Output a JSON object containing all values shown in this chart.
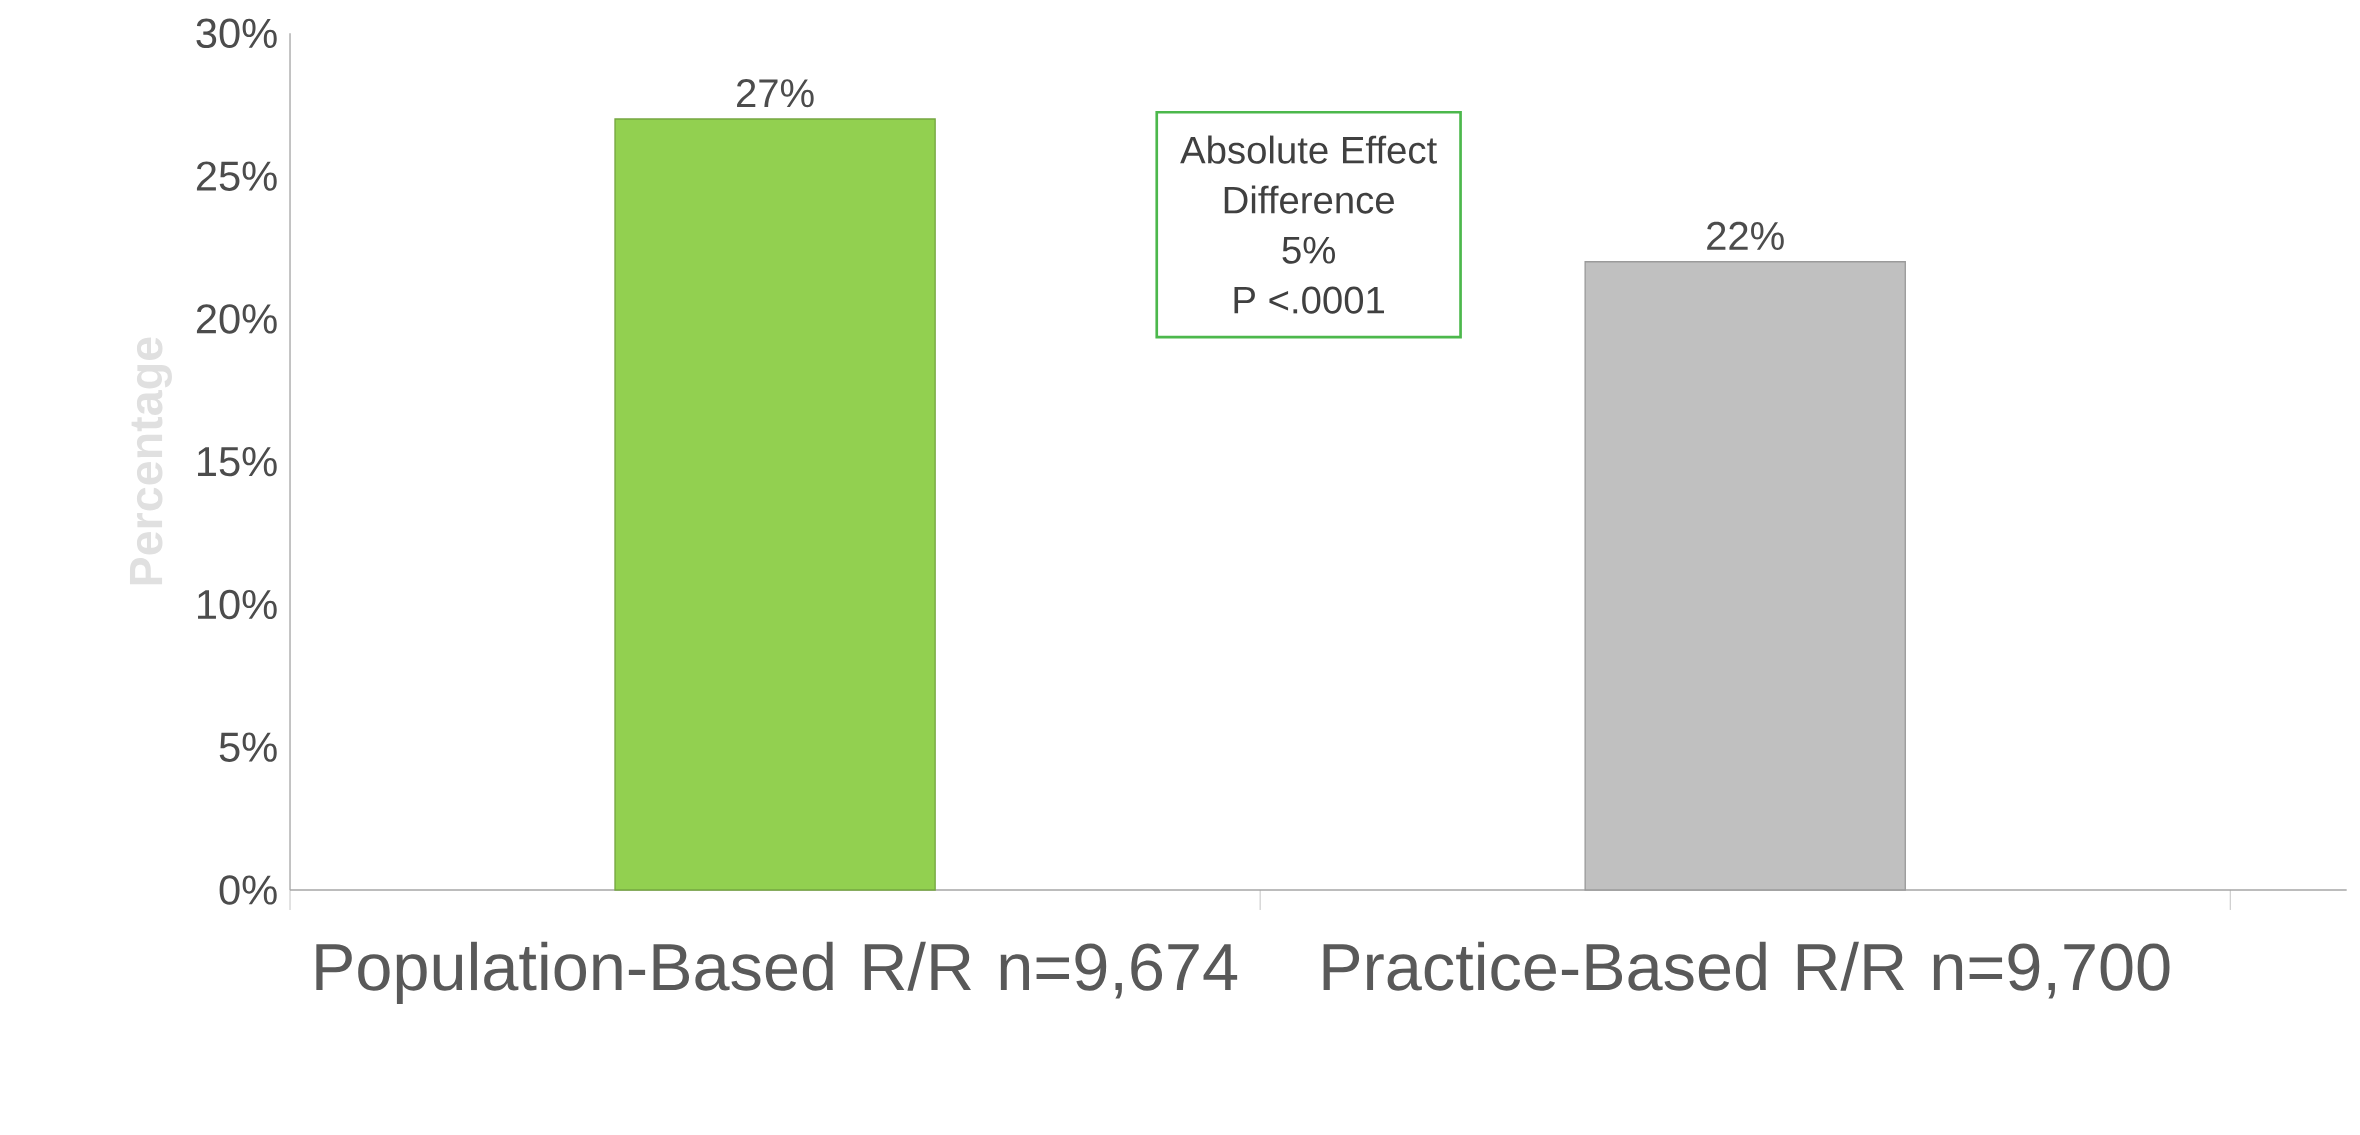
{
  "chart_data": {
    "type": "bar",
    "categories": [
      "Population-Based R/R n=9,674",
      "Practice-Based R/R n=9,700"
    ],
    "values": [
      27,
      22
    ],
    "colors": [
      "#92d050",
      "#c0c0c0"
    ],
    "value_labels": [
      "27%",
      "22%"
    ],
    "ylabel": "Percentage",
    "ylim": [
      0,
      30
    ],
    "yticks": [
      {
        "value": 0,
        "label": "0%"
      },
      {
        "value": 5,
        "label": "5%"
      },
      {
        "value": 10,
        "label": "10%"
      },
      {
        "value": 15,
        "label": "15%"
      },
      {
        "value": 20,
        "label": "20%"
      },
      {
        "value": 25,
        "label": "25%"
      },
      {
        "value": 30,
        "label": "30%"
      }
    ],
    "annotations": [
      "Absolute Effect",
      "Difference",
      "5%",
      "P <.0001"
    ],
    "grid": false
  }
}
